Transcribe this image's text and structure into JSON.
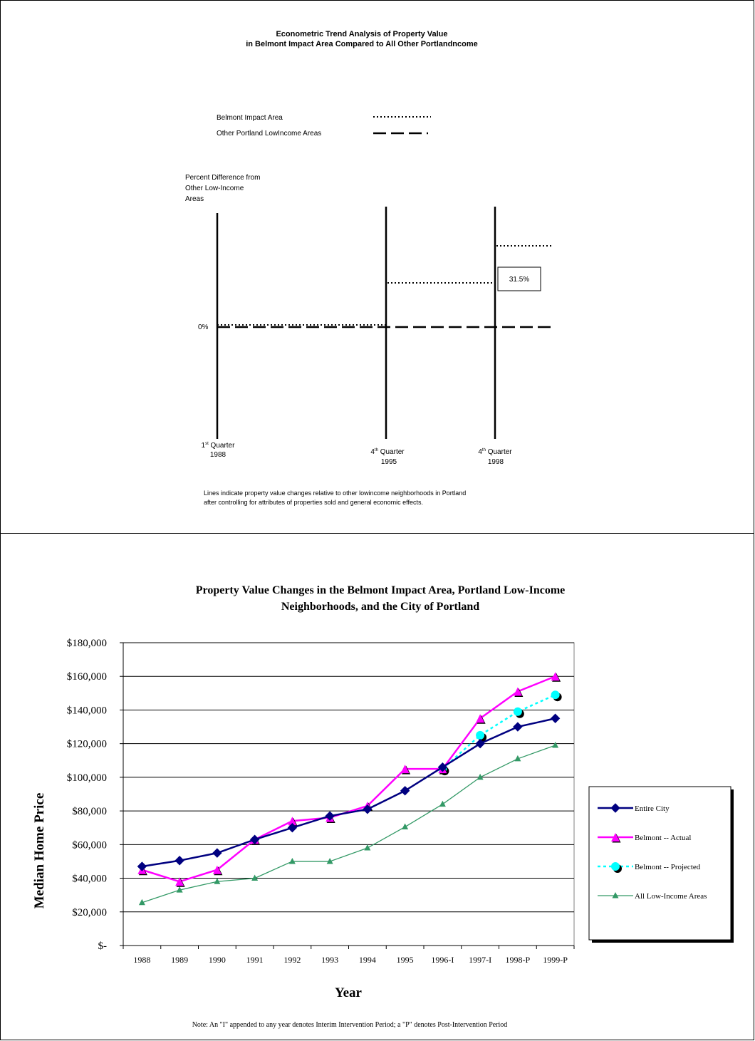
{
  "top_chart": {
    "title_line1": "Econometric Trend Analysis of Property Value",
    "title_line2": "in Belmont Impact Area Compared to All Other Portlandncome",
    "legend": [
      {
        "label": "Belmont Impact Area",
        "style": "dotted"
      },
      {
        "label": "Other Portland LowIncome Areas",
        "style": "dashed"
      }
    ],
    "ylabel_lines": [
      "Percent Difference from",
      "Other Low-Income",
      "Areas"
    ],
    "zero_label": "0%",
    "value_box": "31.5%",
    "periods": [
      {
        "ord": "1",
        "sup": "st",
        "word": " Quarter",
        "year": "1988"
      },
      {
        "ord": "4",
        "sup": "th",
        "word": " Quarter",
        "year": "1995"
      },
      {
        "ord": "4",
        "sup": "th",
        "word": " Quarter",
        "year": "1998"
      }
    ],
    "note_line1": "Lines indicate property value changes relative to other lowincome neighborhoods in Portland",
    "note_line2": "after controlling for attributes of properties sold and general economic effects.",
    "belmont_steps": [
      {
        "period": "1988 Q1 - 1995 Q4",
        "value": 0
      },
      {
        "period": "1995 Q4 - 1998 Q4",
        "value": 18
      },
      {
        "period": "after 1998 Q4",
        "value": 31.5
      }
    ],
    "other_value": 0
  },
  "chart_data": {
    "type": "line",
    "title_line1": "Property Value Changes in the Belmont Impact Area, Portland Low-Income",
    "title_line2": "Neighborhoods, and the City of Portland",
    "xlabel": "Year",
    "ylabel": "Median Home Price",
    "ylim": [
      0,
      180000
    ],
    "y_ticks": [
      "$-",
      "$20,000",
      "$40,000",
      "$60,000",
      "$80,000",
      "$100,000",
      "$120,000",
      "$140,000",
      "$160,000",
      "$180,000"
    ],
    "categories": [
      "1988",
      "1989",
      "1990",
      "1991",
      "1992",
      "1993",
      "1994",
      "1995",
      "1996-I",
      "1997-I",
      "1998-P",
      "1999-P"
    ],
    "grid": true,
    "legend_position": "right",
    "series": [
      {
        "name": "Entire City",
        "color": "#000080",
        "marker": "diamond",
        "dash": "solid",
        "values": [
          47000,
          50500,
          55000,
          63000,
          70000,
          77000,
          81000,
          92000,
          106000,
          120000,
          130000,
          135000
        ]
      },
      {
        "name": "Belmont -- Actual",
        "color": "#FF00FF",
        "marker": "triangle",
        "dash": "solid",
        "values": [
          45000,
          38000,
          45000,
          63000,
          74000,
          76000,
          83000,
          105000,
          105000,
          135000,
          151000,
          160000
        ]
      },
      {
        "name": "Belmont -- Projected",
        "color": "#00FFFF",
        "marker": "circle",
        "dash": "dashed",
        "values": [
          null,
          null,
          null,
          null,
          null,
          null,
          null,
          null,
          105000,
          125000,
          139000,
          149000
        ]
      },
      {
        "name": "All Low-Income Areas",
        "color": "#339966",
        "marker": "triangle-small",
        "dash": "solid",
        "values": [
          25500,
          33000,
          38000,
          40000,
          50000,
          50000,
          58000,
          70500,
          84000,
          100000,
          111000,
          119000
        ]
      }
    ],
    "note": "Note:  An \"I\" appended to any year denotes Interim Intervention Period; a \"P\" denotes Post-Intervention Period"
  }
}
